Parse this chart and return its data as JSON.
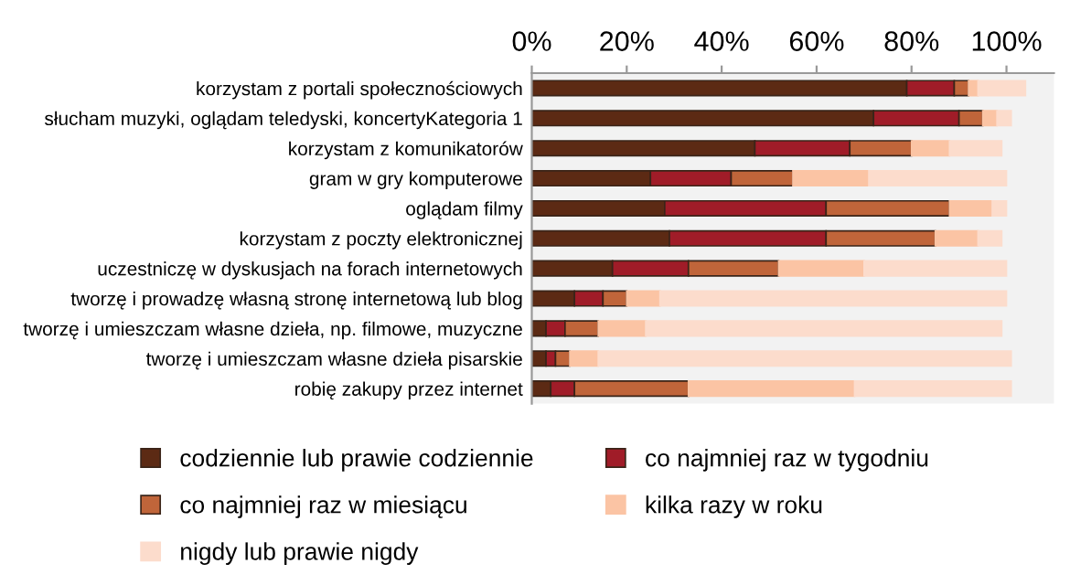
{
  "chart_data": {
    "type": "bar",
    "orientation": "horizontal",
    "stacked": true,
    "categories": [
      "korzystam z portali społecznościowych",
      "słucham muzyki, oglądam teledyski, koncertyKategoria 1",
      "korzystam z komunikatorów",
      "gram w gry komputerowe",
      "oglądam filmy",
      "korzystam z poczty elektronicznej",
      "uczestniczę w dyskusjach na forach internetowych",
      "tworzę i prowadzę własną stronę internetową lub blog",
      "tworzę i umieszczam własne dzieła, np. filmowe, muzyczne",
      "tworzę i umieszczam własne dzieła pisarskie",
      "robię zakupy przez internet"
    ],
    "series": [
      {
        "name": "codziennie lub prawie codziennie",
        "color": "#5c2a14",
        "values": [
          79,
          72,
          47,
          25,
          28,
          29,
          17,
          9,
          3,
          3,
          4
        ]
      },
      {
        "name": "co najmniej raz w tygodniu",
        "color": "#a01c28",
        "values": [
          10,
          18,
          20,
          17,
          34,
          33,
          16,
          6,
          4,
          2,
          5
        ]
      },
      {
        "name": "co najmniej raz w miesiącu",
        "color": "#c0653a",
        "values": [
          3,
          5,
          13,
          13,
          26,
          23,
          19,
          5,
          7,
          3,
          24
        ]
      },
      {
        "name": "kilka razy w roku",
        "color": "#fbc4a4",
        "values": [
          2,
          3,
          8,
          16,
          9,
          9,
          18,
          7,
          10,
          6,
          35
        ]
      },
      {
        "name": "nigdy lub prawie nigdy",
        "color": "#fcdccc",
        "values": [
          10,
          3,
          11,
          29,
          3,
          5,
          30,
          73,
          75,
          87,
          33
        ]
      }
    ],
    "xlim": [
      0,
      110
    ],
    "xticks": [
      {
        "value": 0,
        "label": "0%"
      },
      {
        "value": 20,
        "label": "20%"
      },
      {
        "value": 40,
        "label": "40%"
      },
      {
        "value": 60,
        "label": "60%"
      },
      {
        "value": 80,
        "label": "80%"
      },
      {
        "value": 100,
        "label": "100%"
      }
    ],
    "legend": "bottom",
    "grid": false
  }
}
